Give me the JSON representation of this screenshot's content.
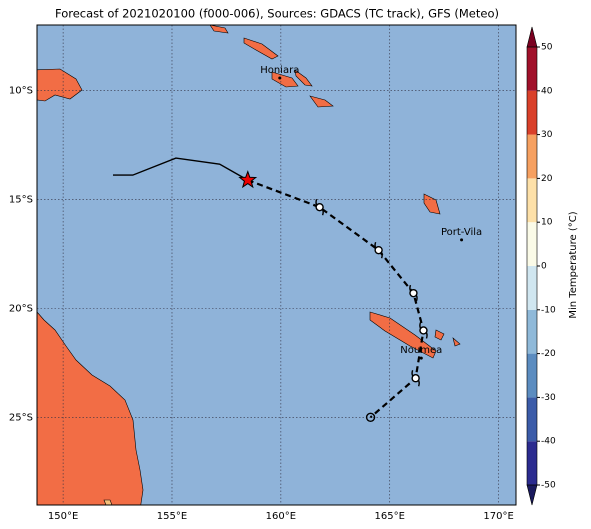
{
  "title": "Forecast of 2021020100 (f000-006), Sources: GDACS (TC track), GFS (Meteo)",
  "map": {
    "xlim": [
      148.8,
      170.8
    ],
    "ylim": [
      -29.0,
      -7.0
    ],
    "xticks": [
      {
        "value": 150,
        "label": "150°E"
      },
      {
        "value": 155,
        "label": "155°E"
      },
      {
        "value": 160,
        "label": "160°E"
      },
      {
        "value": 165,
        "label": "165°E"
      },
      {
        "value": 170,
        "label": "170°E"
      }
    ],
    "yticks": [
      {
        "value": -10,
        "label": "10°S"
      },
      {
        "value": -15,
        "label": "15°S"
      },
      {
        "value": -20,
        "label": "20°S"
      },
      {
        "value": -25,
        "label": "25°S"
      }
    ],
    "grid": true,
    "ocean_color": "#8fb3d9",
    "places": [
      {
        "name": "Honiara",
        "lon": 159.95,
        "lat": -9.43
      },
      {
        "name": "Port-Vila",
        "lon": 168.3,
        "lat": -16.85
      },
      {
        "name": "Noumea",
        "lon": 166.45,
        "lat": -22.27
      }
    ],
    "track_past": {
      "lon": [
        152.29,
        153.2,
        155.18,
        157.19,
        158.48
      ],
      "lat": [
        -13.88,
        -13.88,
        -13.1,
        -13.38,
        -14.11
      ]
    },
    "track_forecast": {
      "lon": [
        158.48,
        161.78,
        164.49,
        166.09,
        166.55,
        166.19,
        164.12
      ],
      "lat": [
        -14.11,
        -15.35,
        -17.32,
        -19.29,
        -21.0,
        -23.19,
        -24.98
      ]
    }
  },
  "colorbar": {
    "label": "Min Temperature (°C)",
    "lim": [
      -50,
      50
    ],
    "ticks": [
      -50,
      -40,
      -30,
      -20,
      -10,
      0,
      10,
      20,
      30,
      40,
      50
    ],
    "colors": [
      "#2b2b8f",
      "#3b5ba8",
      "#5b8cc0",
      "#8fb9d9",
      "#d0e6f0",
      "#fbfbe8",
      "#fde0a8",
      "#f6a060",
      "#d9402a",
      "#a0102a"
    ],
    "under_color": "#1a1a5e",
    "over_color": "#7a0020"
  }
}
